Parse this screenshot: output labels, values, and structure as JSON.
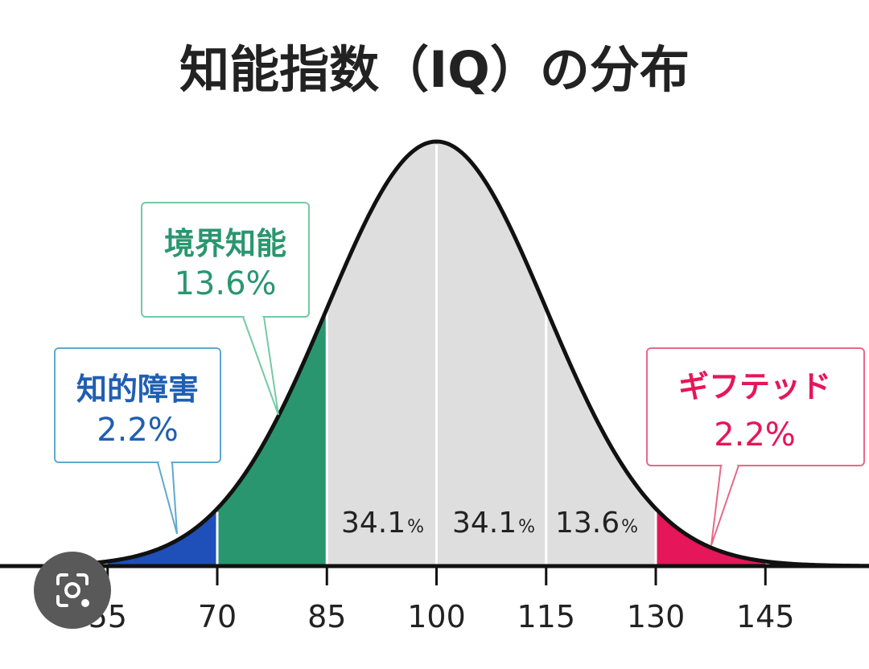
{
  "chart_data": {
    "type": "area",
    "title": "知能指数（IQ）の分布",
    "mean": 100,
    "sd": 15,
    "xlim": [
      52,
      163
    ],
    "x_ticks": [
      "55",
      "70",
      "85",
      "100",
      "115",
      "130",
      "145"
    ],
    "x_tick_values": [
      55,
      70,
      85,
      100,
      115,
      130,
      145
    ],
    "regions": [
      {
        "from": 55,
        "to": 70,
        "color": "#1f4fb8"
      },
      {
        "from": 70,
        "to": 85,
        "color": "#2a9670"
      },
      {
        "from": 85,
        "to": 100,
        "color": "#dedede"
      },
      {
        "from": 100,
        "to": 115,
        "color": "#dedede"
      },
      {
        "from": 115,
        "to": 130,
        "color": "#dedede"
      },
      {
        "from": 130,
        "to": 145,
        "color": "#e5165a"
      }
    ],
    "inside_labels": [
      {
        "value": "34.1",
        "unit": "%"
      },
      {
        "value": "34.1",
        "unit": "%"
      },
      {
        "value": "13.6",
        "unit": "%"
      }
    ],
    "callouts": [
      {
        "name": "知的障害",
        "value": "2.2%",
        "color": "#1f5fb3"
      },
      {
        "name": "境界知能",
        "value": "13.6%",
        "color": "#2a9670"
      },
      {
        "name": "ギフテッド",
        "value": "2.2%",
        "color": "#e5165a"
      }
    ]
  },
  "colors": {
    "curve": "#111111",
    "callout_border_blue": "#5fa9cf",
    "callout_border_green": "#74c9a6",
    "callout_border_pink": "#e56a8a"
  },
  "lens_button": {
    "icon": "camera-search-icon"
  }
}
